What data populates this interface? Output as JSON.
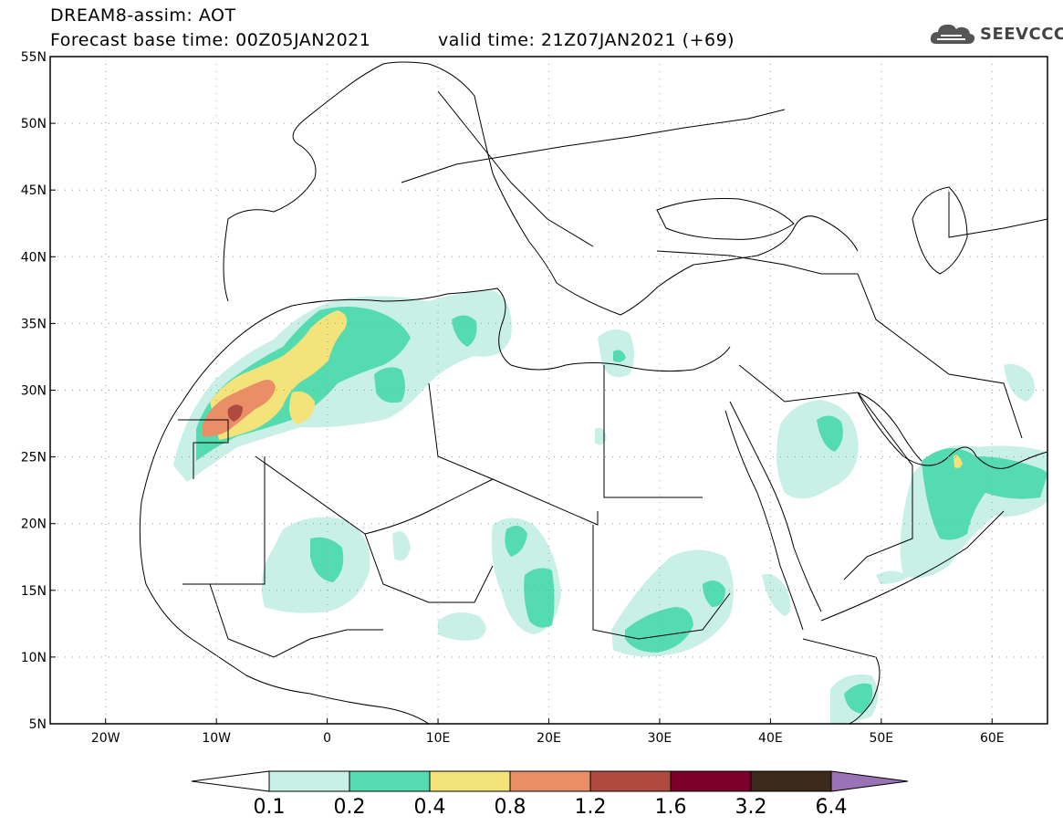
{
  "header": {
    "title": "DREAM8-assim: AOT",
    "forecast_base": "Forecast base time: 00Z05JAN2021",
    "valid_time": "valid time: 21Z07JAN2021 (+69)",
    "logo_text": "SEEVCCC",
    "logo_icon": "cloud-icon"
  },
  "map": {
    "lat_labels": [
      "55N",
      "50N",
      "45N",
      "40N",
      "35N",
      "30N",
      "25N",
      "20N",
      "15N",
      "10N",
      "5N"
    ],
    "lat_values": [
      55,
      50,
      45,
      40,
      35,
      30,
      25,
      20,
      15,
      10,
      5
    ],
    "lon_labels": [
      "20W",
      "10W",
      "0",
      "10E",
      "20E",
      "30E",
      "40E",
      "50E",
      "60E"
    ],
    "lon_values": [
      -20,
      -10,
      0,
      10,
      20,
      30,
      40,
      50,
      60
    ],
    "lon_range": [
      -25,
      65
    ],
    "lat_range": [
      5,
      55
    ]
  },
  "colorbar": {
    "labels": [
      "0.1",
      "0.2",
      "0.4",
      "0.8",
      "1.2",
      "1.6",
      "3.2",
      "6.4"
    ],
    "colors": [
      "#ffffff",
      "#c9f0e7",
      "#54dbb0",
      "#f4e27a",
      "#ea8e68",
      "#b04a3e",
      "#7a0029",
      "#3c2a1d",
      "#9b72b6"
    ]
  }
}
